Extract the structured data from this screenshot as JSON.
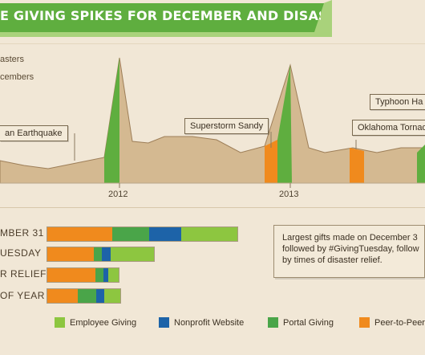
{
  "banner": {
    "title": "E GIVING SPIKES FOR DECEMBER AND DISASTER RELIEF"
  },
  "top_legend": [
    "asters",
    "cembers"
  ],
  "colors": {
    "disaster": "#f08a1d",
    "december": "#5fae3f",
    "area": "#d4b991",
    "area_line": "#9d7e58",
    "employee": "#8dc640",
    "nonprofit": "#1d63a8",
    "portal": "#4aa549",
    "peer": "#f08a1d"
  },
  "chart_data": [
    {
      "type": "area",
      "title": "",
      "x_ticks": [
        "2012",
        "2013"
      ],
      "annotations": [
        "an Earthquake",
        "Superstorm Sandy",
        "Oklahoma Tornad",
        "Typhoon Ha"
      ],
      "legend": [
        "asters",
        "cembers"
      ]
    },
    {
      "type": "bar",
      "orientation": "horizontal",
      "stacked": true,
      "categories": [
        "MBER 31",
        "UESDAY",
        "R RELIEF",
        "OF YEAR"
      ],
      "series": [
        {
          "name": "Peer-to-Peer",
          "values": [
            81,
            58,
            60,
            38
          ]
        },
        {
          "name": "Portal Giving",
          "values": [
            46,
            10,
            10,
            23
          ]
        },
        {
          "name": "Nonprofit Website",
          "values": [
            40,
            11,
            6,
            10
          ]
        },
        {
          "name": "Employee Giving",
          "values": [
            70,
            54,
            13,
            20
          ]
        }
      ]
    }
  ],
  "note": {
    "lines": [
      "Largest gifts made on December 3",
      "followed by #GivingTuesday, follow",
      "by times of disaster relief."
    ]
  },
  "bottom_legend": [
    "Employee Giving",
    "Nonprofit Website",
    "Portal Giving",
    "Peer-to-Peer"
  ]
}
